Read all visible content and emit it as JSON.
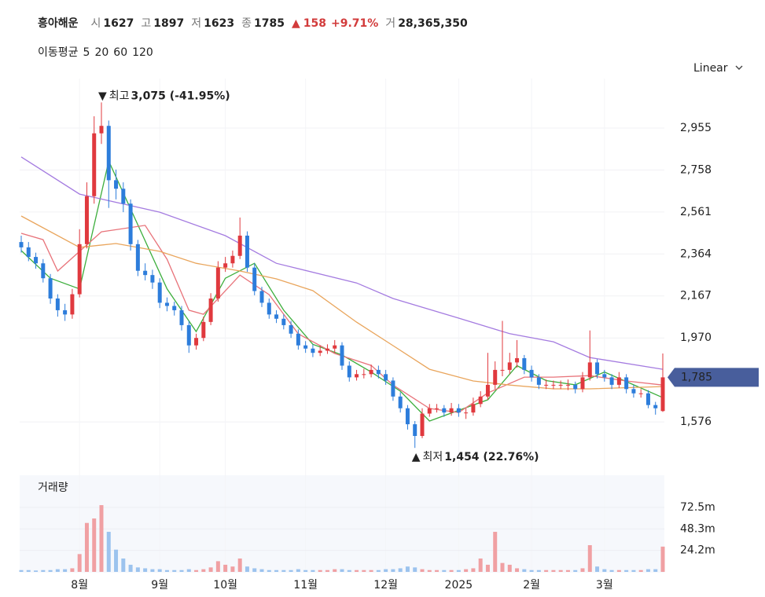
{
  "header": {
    "name": "흥아해운",
    "fields": [
      {
        "label": "시",
        "value": 1627
      },
      {
        "label": "고",
        "value": 1897
      },
      {
        "label": "저",
        "value": 1623
      },
      {
        "label": "종",
        "value": 1785
      }
    ],
    "change_arrow": "▲",
    "change": 158,
    "change_pct": "+9.71%",
    "volume_label": "거",
    "volume": "28,365,350"
  },
  "ma_legend_title": "이동평균",
  "scale_button": "Linear",
  "chart_data": [
    {
      "type": "candlestick",
      "open": [
        2420,
        2395,
        2350,
        2320,
        2250,
        2155,
        2100,
        2080,
        2175,
        2410,
        2635,
        2930,
        2965,
        2710,
        2670,
        2600,
        2410,
        2285,
        2265,
        2230,
        2135,
        2120,
        2100,
        2030,
        1935,
        1970,
        2045,
        2155,
        2300,
        2320,
        2355,
        2450,
        2300,
        2190,
        2135,
        2080,
        2060,
        2030,
        1990,
        1935,
        1920,
        1900,
        1910,
        1920,
        1935,
        1840,
        1785,
        1800,
        1800,
        1820,
        1800,
        1770,
        1695,
        1640,
        1565,
        1510,
        1615,
        1640,
        1640,
        1620,
        1640,
        1620,
        1620,
        1660,
        1695,
        1750,
        1820,
        1820,
        1855,
        1875,
        1820,
        1785,
        1750,
        1750,
        1750,
        1750,
        1750,
        1730,
        1785,
        1855,
        1800,
        1785,
        1750,
        1785,
        1730,
        1710,
        1710,
        1655,
        1627
      ],
      "high": [
        2450,
        2420,
        2370,
        2340,
        2270,
        2175,
        2130,
        2200,
        2480,
        2700,
        3010,
        3075,
        2990,
        2760,
        2700,
        2620,
        2430,
        2320,
        2290,
        2250,
        2160,
        2140,
        2120,
        2050,
        1990,
        2070,
        2180,
        2330,
        2350,
        2380,
        2535,
        2470,
        2320,
        2210,
        2155,
        2100,
        2080,
        2050,
        2010,
        1955,
        1940,
        1935,
        1940,
        1960,
        1950,
        1860,
        1820,
        1825,
        1845,
        1840,
        1820,
        1785,
        1715,
        1655,
        1580,
        1640,
        1660,
        1660,
        1655,
        1665,
        1660,
        1640,
        1690,
        1720,
        1900,
        1860,
        2050,
        1900,
        1960,
        1890,
        1840,
        1800,
        1775,
        1770,
        1770,
        1775,
        1765,
        1810,
        2005,
        1870,
        1820,
        1800,
        1810,
        1800,
        1750,
        1730,
        1725,
        1670,
        1897
      ],
      "low": [
        2370,
        2330,
        2295,
        2230,
        2130,
        2070,
        2050,
        2060,
        2160,
        2390,
        2600,
        2880,
        2580,
        2620,
        2560,
        2380,
        2260,
        2240,
        2200,
        2110,
        2095,
        2075,
        2005,
        1900,
        1915,
        1955,
        2030,
        2140,
        2280,
        2300,
        2340,
        2280,
        2170,
        2115,
        2060,
        2040,
        2010,
        1970,
        1915,
        1900,
        1880,
        1885,
        1895,
        1900,
        1820,
        1765,
        1770,
        1780,
        1785,
        1780,
        1750,
        1675,
        1620,
        1540,
        1454,
        1500,
        1600,
        1620,
        1600,
        1605,
        1600,
        1590,
        1605,
        1645,
        1680,
        1730,
        1790,
        1800,
        1830,
        1800,
        1765,
        1730,
        1730,
        1730,
        1730,
        1725,
        1710,
        1715,
        1770,
        1780,
        1765,
        1730,
        1735,
        1710,
        1690,
        1690,
        1640,
        1610,
        1623
      ],
      "close": [
        2395,
        2350,
        2320,
        2250,
        2155,
        2100,
        2080,
        2175,
        2410,
        2635,
        2930,
        2965,
        2710,
        2670,
        2600,
        2410,
        2285,
        2265,
        2230,
        2135,
        2120,
        2100,
        2030,
        1935,
        1970,
        2045,
        2155,
        2300,
        2320,
        2355,
        2450,
        2300,
        2190,
        2135,
        2080,
        2060,
        2030,
        1990,
        1935,
        1920,
        1900,
        1910,
        1920,
        1935,
        1840,
        1785,
        1800,
        1800,
        1820,
        1800,
        1770,
        1695,
        1640,
        1565,
        1510,
        1615,
        1640,
        1640,
        1620,
        1640,
        1620,
        1620,
        1660,
        1695,
        1750,
        1820,
        1820,
        1855,
        1875,
        1820,
        1785,
        1750,
        1750,
        1750,
        1750,
        1750,
        1730,
        1785,
        1855,
        1800,
        1785,
        1750,
        1785,
        1730,
        1710,
        1710,
        1655,
        1640,
        1785
      ],
      "up_color": "#e0393e",
      "down_color": "#2d7ddb",
      "ylim": [
        1381,
        3187
      ],
      "yticks": [
        {
          "value": 1576,
          "label": "1,576"
        },
        {
          "value": 1970,
          "label": "1,970"
        },
        {
          "value": 2167,
          "label": "2,167"
        },
        {
          "value": 2364,
          "label": "2,364"
        },
        {
          "value": 2561,
          "label": "2,561"
        },
        {
          "value": 2758,
          "label": "2,758"
        },
        {
          "value": 2955,
          "label": "2,955"
        }
      ],
      "grid": true,
      "x_labels": [
        {
          "index": 8,
          "label": "8월"
        },
        {
          "index": 19,
          "label": "9월"
        },
        {
          "index": 28,
          "label": "10월"
        },
        {
          "index": 39,
          "label": "11월"
        },
        {
          "index": 50,
          "label": "12월"
        },
        {
          "index": 60,
          "label": "2025"
        },
        {
          "index": 70,
          "label": "2월"
        },
        {
          "index": 80,
          "label": "3월"
        }
      ],
      "ma": [
        {
          "name": "5",
          "color": "#3cae3c",
          "x": [
            0,
            4,
            8,
            12,
            16,
            20,
            24,
            28,
            32,
            36,
            40,
            44,
            48,
            52,
            56,
            60,
            64,
            68,
            72,
            76,
            80,
            84,
            88
          ],
          "values": [
            2380,
            2250,
            2200,
            2800,
            2500,
            2200,
            2000,
            2250,
            2320,
            2100,
            1940,
            1890,
            1810,
            1720,
            1580,
            1630,
            1680,
            1840,
            1770,
            1750,
            1810,
            1750,
            1690
          ]
        },
        {
          "name": "20",
          "color": "#e8737a",
          "x": [
            0,
            3,
            5,
            8,
            11,
            17,
            20,
            23,
            25,
            30,
            34,
            38,
            43,
            48,
            51,
            56,
            60,
            64,
            69,
            73,
            78,
            83,
            88
          ],
          "values": [
            2461,
            2431,
            2284,
            2376,
            2468,
            2498,
            2339,
            2100,
            2081,
            2265,
            2173,
            1989,
            1897,
            1841,
            1749,
            1639,
            1620,
            1712,
            1786,
            1786,
            1793,
            1768,
            1749
          ]
        },
        {
          "name": "60",
          "color": "#e9a55c",
          "x": [
            0,
            8,
            13,
            19,
            24,
            30,
            35,
            40,
            46,
            51,
            56,
            62,
            67,
            73,
            78,
            88
          ],
          "values": [
            2542,
            2395,
            2413,
            2376,
            2320,
            2284,
            2247,
            2192,
            2044,
            1934,
            1823,
            1768,
            1749,
            1731,
            1731,
            1742
          ]
        },
        {
          "name": "120",
          "color": "#a47be0",
          "x": [
            0,
            8,
            19,
            28,
            35,
            46,
            51,
            60,
            67,
            73,
            78,
            88
          ],
          "values": [
            2819,
            2645,
            2560,
            2450,
            2320,
            2228,
            2155,
            2063,
            1990,
            1952,
            1878,
            1823
          ]
        }
      ],
      "annotations": [
        {
          "arrow": "▼",
          "text": "최고",
          "index": 11,
          "value": 3075,
          "label": "3,075 (-41.95%)"
        },
        {
          "arrow": "▲",
          "text": "최저",
          "index": 54,
          "value": 1454,
          "label": "1,454 (22.76%)"
        }
      ],
      "last_price": {
        "value": 1785,
        "label": "1,785",
        "color": "#485e9c"
      }
    },
    {
      "type": "volume",
      "title": "거래량",
      "values": [
        2,
        2,
        1.5,
        2,
        2,
        3,
        3,
        4,
        20,
        55,
        60,
        75,
        45,
        25,
        15,
        8,
        5,
        4,
        3,
        3,
        2,
        2,
        2,
        3,
        2,
        3,
        5,
        12,
        8,
        6,
        15,
        6,
        4,
        3,
        2,
        2,
        2,
        2,
        3,
        2,
        2,
        2,
        2,
        3,
        3,
        2,
        2,
        2,
        2,
        2,
        3,
        3,
        4,
        6,
        5,
        3,
        2,
        2,
        2,
        2,
        2,
        3,
        4,
        15,
        8,
        45,
        10,
        8,
        4,
        3,
        2,
        2,
        2,
        2,
        2,
        2,
        2,
        4,
        30,
        6,
        3,
        2,
        2,
        2,
        2,
        2,
        3,
        3,
        28.37
      ],
      "up_color": "#f0a0a3",
      "down_color": "#9cc3ee",
      "ylim": [
        0,
        108.6
      ],
      "yticks": [
        {
          "value": 24.2,
          "label": "24.2m"
        },
        {
          "value": 48.3,
          "label": "48.3m"
        },
        {
          "value": 72.5,
          "label": "72.5m"
        }
      ]
    }
  ]
}
